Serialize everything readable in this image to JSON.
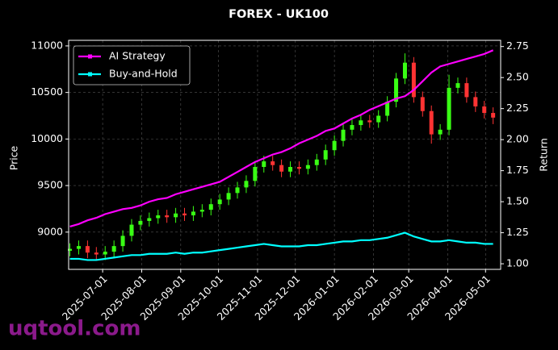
{
  "chart_data": {
    "type": "candlestick",
    "title": "FOREX - UK100",
    "ylabel": "Price",
    "y2label": "Return",
    "watermark": "uqtool.com",
    "x": [
      "2025-06-05",
      "2025-06-12",
      "2025-06-19",
      "2025-06-26",
      "2025-07-03",
      "2025-07-10",
      "2025-07-17",
      "2025-07-24",
      "2025-07-31",
      "2025-08-07",
      "2025-08-14",
      "2025-08-21",
      "2025-08-28",
      "2025-09-04",
      "2025-09-11",
      "2025-09-18",
      "2025-09-25",
      "2025-10-02",
      "2025-10-09",
      "2025-10-16",
      "2025-10-23",
      "2025-10-30",
      "2025-11-06",
      "2025-11-13",
      "2025-11-20",
      "2025-11-27",
      "2025-12-04",
      "2025-12-11",
      "2025-12-18",
      "2025-12-25",
      "2026-01-01",
      "2026-01-08",
      "2026-01-15",
      "2026-01-22",
      "2026-01-29",
      "2026-02-05",
      "2026-02-12",
      "2026-02-19",
      "2026-02-26",
      "2026-03-05",
      "2026-03-12",
      "2026-03-19",
      "2026-03-26",
      "2026-04-02",
      "2026-04-09",
      "2026-04-16",
      "2026-04-23",
      "2026-04-30",
      "2026-05-07"
    ],
    "open": [
      8800,
      8820,
      8850,
      8780,
      8760,
      8790,
      8850,
      8960,
      9080,
      9120,
      9150,
      9180,
      9160,
      9200,
      9180,
      9220,
      9240,
      9300,
      9350,
      9420,
      9480,
      9550,
      9700,
      9760,
      9720,
      9650,
      9700,
      9680,
      9720,
      9780,
      9880,
      9980,
      10100,
      10150,
      10200,
      10180,
      10250,
      10400,
      10650,
      10820,
      10450,
      10300,
      10050,
      10100,
      10550,
      10600,
      10450,
      10350,
      10280
    ],
    "high": [
      8880,
      8910,
      8910,
      8840,
      8850,
      8910,
      9020,
      9140,
      9180,
      9210,
      9240,
      9240,
      9260,
      9260,
      9280,
      9300,
      9360,
      9410,
      9480,
      9540,
      9610,
      9760,
      9820,
      9820,
      9780,
      9760,
      9760,
      9780,
      9840,
      9940,
      10040,
      10160,
      10210,
      10260,
      10260,
      10310,
      10460,
      10710,
      10920,
      10880,
      10510,
      10360,
      10160,
      10690,
      10660,
      10660,
      10510,
      10410,
      10340
    ],
    "low": [
      8740,
      8760,
      8720,
      8700,
      8700,
      8730,
      8790,
      8900,
      9020,
      9060,
      9090,
      9100,
      9100,
      9120,
      9120,
      9160,
      9180,
      9240,
      9290,
      9360,
      9420,
      9490,
      9640,
      9660,
      9590,
      9590,
      9620,
      9620,
      9660,
      9720,
      9820,
      9920,
      10040,
      10090,
      10120,
      10120,
      10190,
      10340,
      10590,
      10390,
      10240,
      9950,
      9990,
      10040,
      10490,
      10390,
      10290,
      10220,
      10160
    ],
    "close": [
      8820,
      8850,
      8780,
      8760,
      8790,
      8850,
      8960,
      9080,
      9120,
      9150,
      9180,
      9160,
      9200,
      9180,
      9220,
      9240,
      9300,
      9350,
      9420,
      9480,
      9550,
      9700,
      9760,
      9720,
      9650,
      9700,
      9680,
      9720,
      9780,
      9880,
      9980,
      10100,
      10150,
      10200,
      10180,
      10250,
      10400,
      10650,
      10820,
      10450,
      10300,
      10050,
      10100,
      10550,
      10600,
      10450,
      10350,
      10280,
      10230
    ],
    "up_color": "#39ff14",
    "down_color": "#ff3333",
    "series": [
      {
        "name": "AI Strategy",
        "color": "#ff00ff",
        "axis": "y2",
        "values": [
          1.3,
          1.32,
          1.35,
          1.37,
          1.4,
          1.42,
          1.44,
          1.45,
          1.47,
          1.5,
          1.52,
          1.53,
          1.56,
          1.58,
          1.6,
          1.62,
          1.64,
          1.66,
          1.7,
          1.74,
          1.78,
          1.82,
          1.85,
          1.88,
          1.9,
          1.93,
          1.97,
          2.0,
          2.03,
          2.07,
          2.09,
          2.13,
          2.17,
          2.2,
          2.24,
          2.27,
          2.3,
          2.33,
          2.35,
          2.4,
          2.47,
          2.54,
          2.59,
          2.61,
          2.63,
          2.65,
          2.67,
          2.69,
          2.72
        ]
      },
      {
        "name": "Buy-and-Hold",
        "color": "#00ffff",
        "axis": "y2",
        "values": [
          1.04,
          1.04,
          1.03,
          1.03,
          1.04,
          1.05,
          1.06,
          1.07,
          1.07,
          1.08,
          1.08,
          1.08,
          1.09,
          1.08,
          1.09,
          1.09,
          1.1,
          1.11,
          1.12,
          1.13,
          1.14,
          1.15,
          1.16,
          1.15,
          1.14,
          1.14,
          1.14,
          1.15,
          1.15,
          1.16,
          1.17,
          1.18,
          1.18,
          1.19,
          1.19,
          1.2,
          1.21,
          1.23,
          1.25,
          1.22,
          1.2,
          1.18,
          1.18,
          1.19,
          1.18,
          1.17,
          1.17,
          1.16,
          1.16
        ]
      }
    ],
    "xlim": [
      "2025-06-04",
      "2026-05-13"
    ],
    "xticks": [
      "2025-07-01",
      "2025-08-01",
      "2025-09-01",
      "2025-10-01",
      "2025-11-01",
      "2025-12-01",
      "2026-01-01",
      "2026-02-01",
      "2026-03-01",
      "2026-04-01",
      "2026-05-01"
    ],
    "ylim": [
      8600,
      11060
    ],
    "yticks": [
      9000,
      9500,
      10000,
      10500,
      11000
    ],
    "y2lim": [
      0.955,
      2.8
    ],
    "y2ticks": [
      {
        "value": 1,
        "label": "1.00"
      },
      1.25,
      {
        "value": 1.5,
        "label": "1.50"
      },
      1.75,
      {
        "value": 2,
        "label": "2.00"
      },
      2.25,
      {
        "value": 2.5,
        "label": "2.50"
      },
      2.75
    ],
    "grid": true,
    "legend": "upper left"
  }
}
